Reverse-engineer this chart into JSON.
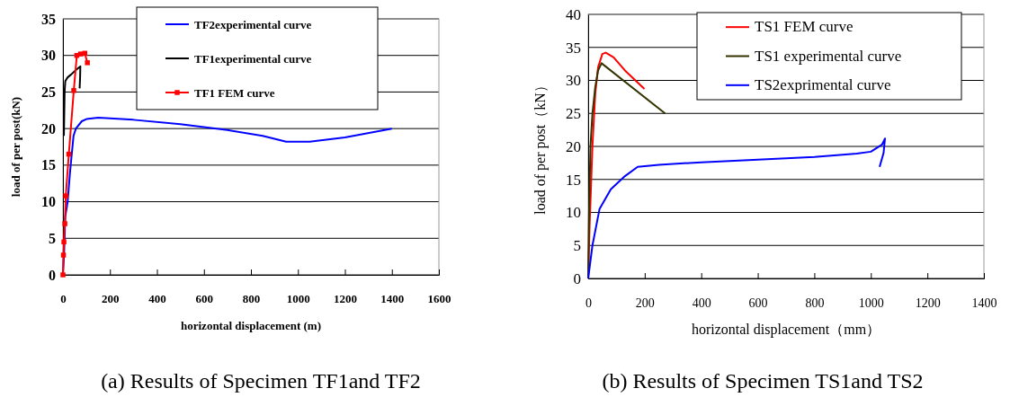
{
  "chart_data": [
    {
      "type": "line",
      "xlabel": "horizontal displacement (m)",
      "ylabel": "load of per post(kN)",
      "xlim": [
        0,
        1600
      ],
      "xticks": [
        0,
        200,
        400,
        600,
        800,
        1000,
        1200,
        1400,
        1600
      ],
      "ylim": [
        0,
        35
      ],
      "yticks": [
        0,
        5,
        10,
        15,
        20,
        25,
        30,
        35
      ],
      "grid": "y",
      "legend": "top",
      "annotations": [
        "(a) Results of Specimen TF1and TF2"
      ],
      "series": [
        {
          "name": "TF2experimental curve",
          "color": "#0000ff",
          "marker": "none",
          "x": [
            0,
            5,
            10,
            20,
            30,
            36,
            45,
            55,
            80,
            100,
            150,
            300,
            500,
            700,
            850,
            950,
            1050,
            1200,
            1400
          ],
          "values": [
            0,
            3,
            8,
            10,
            14,
            16,
            19,
            20,
            21,
            21.3,
            21.5,
            21.2,
            20.6,
            19.8,
            19,
            18.2,
            18.2,
            18.8,
            20
          ]
        },
        {
          "name": "TF1experimental curve",
          "color": "#000000",
          "marker": "none",
          "x": [
            4,
            7,
            10,
            20,
            35,
            55,
            70,
            74,
            73,
            71
          ],
          "values": [
            19,
            25,
            26.5,
            27,
            27.4,
            28,
            28.4,
            28.5,
            27,
            25.5
          ]
        },
        {
          "name": "TF1 FEM curve",
          "color": "#ff0000",
          "marker": "square",
          "x": [
            0,
            2,
            4,
            8,
            12,
            25,
            46,
            59,
            75,
            93,
            104
          ],
          "values": [
            0,
            2.7,
            4.5,
            7,
            10.8,
            16.5,
            25.2,
            30,
            30.2,
            30.3,
            29
          ]
        }
      ]
    },
    {
      "type": "line",
      "xlabel": "horizontal displacement（mm）",
      "ylabel": "load of per post（kN）",
      "xlim": [
        0,
        1400
      ],
      "xticks": [
        0,
        200,
        400,
        600,
        800,
        1000,
        1200,
        1400
      ],
      "ylim": [
        0,
        40
      ],
      "yticks": [
        0,
        5,
        10,
        15,
        20,
        25,
        30,
        35,
        40
      ],
      "grid": "y",
      "legend": "top",
      "annotations": [
        "(b) Results of Specimen TS1and TS2"
      ],
      "series": [
        {
          "name": "TS1 FEM curve",
          "color": "#ff0000",
          "marker": "none",
          "x": [
            0,
            5,
            15,
            25,
            35,
            50,
            62,
            90,
            130,
            199
          ],
          "values": [
            0,
            8,
            20,
            28,
            32,
            34,
            34.2,
            33.5,
            31.5,
            28.7
          ]
        },
        {
          "name": "TS1 experimental curve",
          "color": "#333300",
          "marker": "none",
          "x": [
            0,
            3,
            8,
            15,
            25,
            35,
            47,
            272
          ],
          "values": [
            0,
            10,
            20,
            25,
            29,
            31.5,
            32.6,
            25
          ]
        },
        {
          "name": "TS2exprimental curve",
          "color": "#0000ff",
          "marker": "none",
          "x": [
            0,
            15,
            40,
            80,
            130,
            175,
            250,
            400,
            600,
            800,
            950,
            1000,
            1040,
            1050,
            1045,
            1031
          ],
          "values": [
            0,
            5,
            10.5,
            13.5,
            15.5,
            16.9,
            17.2,
            17.6,
            18,
            18.4,
            18.9,
            19.2,
            20.3,
            21.2,
            19,
            16.9
          ]
        }
      ]
    }
  ]
}
